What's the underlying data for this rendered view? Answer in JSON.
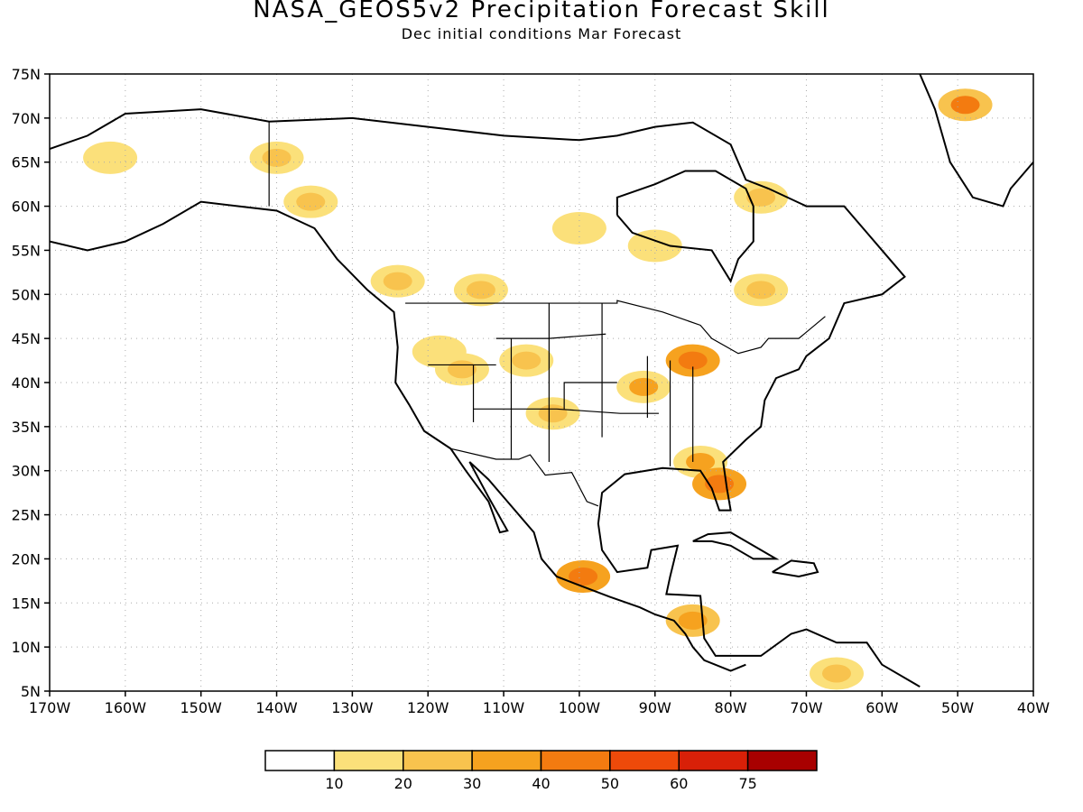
{
  "title": "NASA_GEOS5v2 Precipitation Forecast Skill",
  "subtitle": "Dec initial conditions  Mar Forecast",
  "lon_ticks": [
    "170W",
    "160W",
    "150W",
    "140W",
    "130W",
    "120W",
    "110W",
    "100W",
    "90W",
    "80W",
    "70W",
    "60W",
    "50W",
    "40W"
  ],
  "lat_ticks": [
    "75N",
    "70N",
    "65N",
    "60N",
    "55N",
    "50N",
    "45N",
    "40N",
    "35N",
    "30N",
    "25N",
    "20N",
    "15N",
    "10N",
    "5N"
  ],
  "colorbar": {
    "colors": [
      "#ffffff",
      "#fbe07a",
      "#f8c34e",
      "#f6a21f",
      "#f37b10",
      "#ee4a0a",
      "#d82008",
      "#a80000"
    ],
    "labels": [
      "10",
      "20",
      "30",
      "40",
      "50",
      "60",
      "75"
    ]
  },
  "map_extent": {
    "lon": [
      -170,
      -40
    ],
    "lat": [
      5,
      75
    ]
  },
  "skill_patches": [
    {
      "lon": -140,
      "lat": 65.5,
      "value": 25
    },
    {
      "lon": -135.5,
      "lat": 60.5,
      "value": 20
    },
    {
      "lon": -124,
      "lat": 51.5,
      "value": 25
    },
    {
      "lon": -113,
      "lat": 50.5,
      "value": 20
    },
    {
      "lon": -118.5,
      "lat": 43.5,
      "value": 15
    },
    {
      "lon": -115.5,
      "lat": 41.5,
      "value": 25
    },
    {
      "lon": -107,
      "lat": 42.5,
      "value": 25
    },
    {
      "lon": -103.5,
      "lat": 36.5,
      "value": 25
    },
    {
      "lon": -91.5,
      "lat": 39.5,
      "value": 30
    },
    {
      "lon": -85,
      "lat": 42.5,
      "value": 45
    },
    {
      "lon": -84,
      "lat": 31,
      "value": 30
    },
    {
      "lon": -81.5,
      "lat": 28.5,
      "value": 45
    },
    {
      "lon": -99.5,
      "lat": 18,
      "value": 45
    },
    {
      "lon": -85,
      "lat": 13,
      "value": 35
    },
    {
      "lon": -66,
      "lat": 7,
      "value": 20
    },
    {
      "lon": -49,
      "lat": 71.5,
      "value": 40
    },
    {
      "lon": -76,
      "lat": 50.5,
      "value": 20
    },
    {
      "lon": -76,
      "lat": 61,
      "value": 20
    },
    {
      "lon": -100,
      "lat": 57.5,
      "value": 15
    },
    {
      "lon": -90,
      "lat": 55.5,
      "value": 15
    },
    {
      "lon": -162,
      "lat": 65.5,
      "value": 15
    }
  ]
}
